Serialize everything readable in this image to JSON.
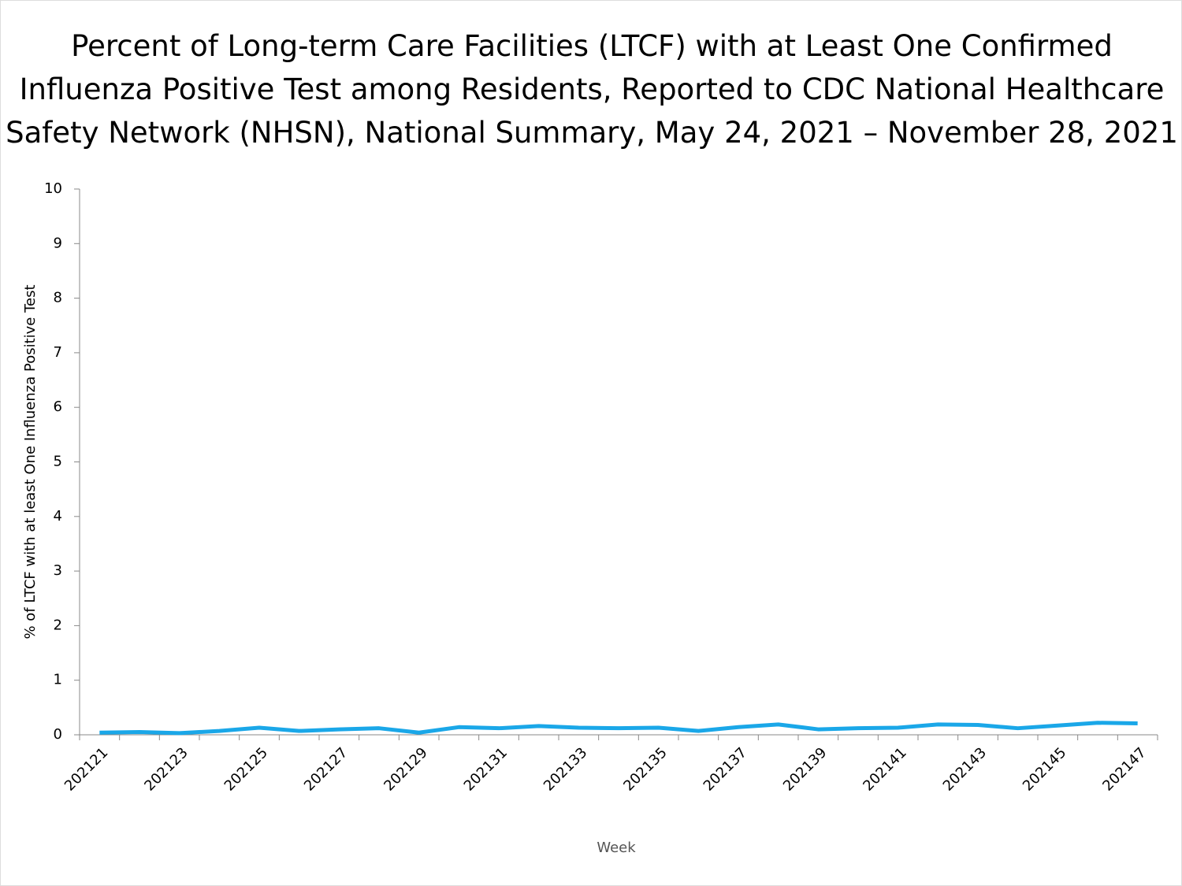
{
  "chart_data": {
    "type": "line",
    "title": "Percent of Long-term Care Facilities (LTCF) with at Least One Confirmed Influenza Positive Test among Residents, Reported to CDC National Healthcare Safety Network (NHSN), National Summary, May 24, 2021 – November 28, 2021",
    "x_label": "Week",
    "y_label": "% of LTCF with at least One Influenza Positive Test",
    "categories": [
      "202121",
      null,
      "202123",
      null,
      "202125",
      null,
      "202127",
      null,
      "202129",
      null,
      "202131",
      null,
      "202133",
      null,
      "202135",
      null,
      "202137",
      null,
      "202139",
      null,
      "202141",
      null,
      "202143",
      null,
      "202145",
      null,
      "202147"
    ],
    "series": [
      {
        "color": "#1aa7e8",
        "values": [
          0.04,
          0.05,
          0.03,
          0.07,
          0.13,
          0.07,
          0.1,
          0.12,
          0.04,
          0.14,
          0.12,
          0.16,
          0.13,
          0.12,
          0.13,
          0.07,
          0.14,
          0.19,
          0.1,
          0.12,
          0.13,
          0.19,
          0.18,
          0.12,
          0.17,
          0.22,
          0.21
        ]
      }
    ],
    "ylim": [
      0,
      10
    ],
    "yticks": [
      0,
      1,
      2,
      3,
      4,
      5,
      6,
      7,
      8,
      9,
      10
    ],
    "grid": false
  }
}
